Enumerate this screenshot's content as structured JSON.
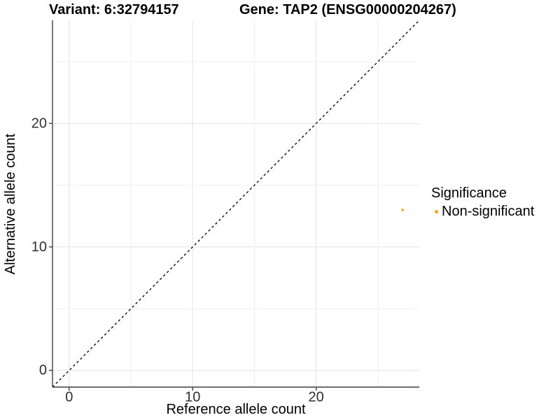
{
  "chart_data": {
    "type": "scatter",
    "title_variant": "Variant: 6:32794157",
    "title_gene": "Gene: TAP2 (ENSG00000204267)",
    "xlabel": "Reference allele count",
    "ylabel": "Alternative allele count",
    "xlim": [
      -1.35,
      28.35
    ],
    "ylim": [
      -1.35,
      28.35
    ],
    "x_ticks": [
      0,
      10,
      20
    ],
    "y_ticks": [
      0,
      10,
      20
    ],
    "minor_grid_every": 5,
    "grid": "on",
    "identity_line": {
      "type": "abline",
      "slope": 1,
      "intercept": 0,
      "style": "dashed",
      "color": "#000000"
    },
    "points": [
      {
        "x": 27,
        "y": 13,
        "series": "Non-significant"
      }
    ],
    "legend": {
      "title": "Significance",
      "position": "right",
      "entries": [
        {
          "label": "Non-significant",
          "color": "#F9A21C"
        }
      ]
    }
  },
  "colors": {
    "background": "#FFFFFF",
    "accent_orange": "#F9A21C",
    "axis_line": "#3F3F3F",
    "tick_label": "#303030",
    "grid_major": "#E2E2E2",
    "grid_minor": "#F0F0F0",
    "diagonal_line": "#000000",
    "title_text": "#000000"
  }
}
